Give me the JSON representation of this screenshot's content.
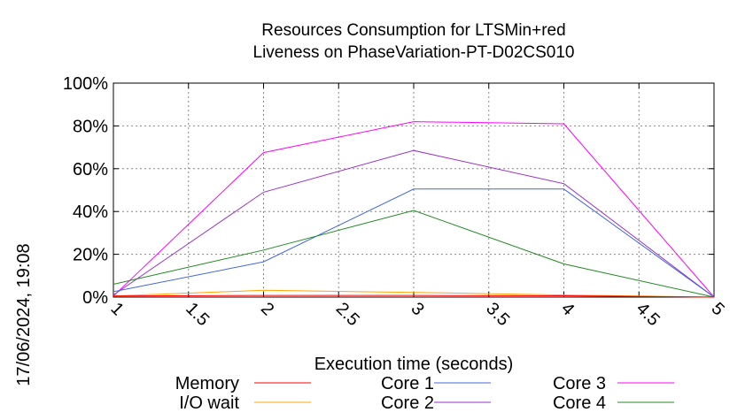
{
  "chart_data": {
    "type": "line",
    "title": [
      "Resources Consumption for LTSMin+red",
      "Liveness on PhaseVariation-PT-D02CS010"
    ],
    "xlabel": "Execution time (seconds)",
    "ylabel": "",
    "timestamp": "17/06/2024, 19:08",
    "xlim": [
      1,
      5
    ],
    "ylim": [
      0,
      100
    ],
    "x_ticks": [
      "1",
      "1.5",
      "2",
      "2.5",
      "3",
      "3.5",
      "4",
      "4.5",
      "5"
    ],
    "y_ticks": [
      "0%",
      "20%",
      "40%",
      "60%",
      "80%",
      "100%"
    ],
    "grid": true,
    "legend_position": "bottom",
    "x": [
      1,
      2,
      3,
      4,
      5
    ],
    "series": [
      {
        "name": "Memory",
        "color": "#ff0000",
        "values": [
          0.5,
          0.8,
          0.8,
          0.6,
          0
        ]
      },
      {
        "name": "I/O wait",
        "color": "#ffa500",
        "values": [
          0.5,
          3.2,
          2.2,
          1.0,
          0
        ]
      },
      {
        "name": "Core 1",
        "color": "#4169e1",
        "values": [
          2.5,
          16.5,
          50.5,
          50.5,
          0
        ]
      },
      {
        "name": "Core 2",
        "color": "#9932cc",
        "values": [
          1.0,
          49.0,
          68.5,
          53.0,
          0
        ]
      },
      {
        "name": "Core 3",
        "color": "#ff00ff",
        "values": [
          0.5,
          67.5,
          82.0,
          81.0,
          0
        ]
      },
      {
        "name": "Core 4",
        "color": "#228b22",
        "values": [
          6.0,
          22.0,
          40.5,
          15.5,
          0
        ]
      }
    ]
  }
}
